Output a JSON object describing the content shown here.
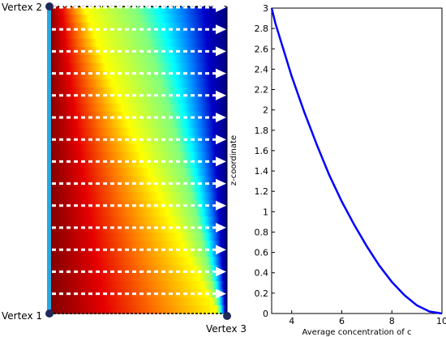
{
  "domain_view": {
    "vertices": {
      "vertex1": "Vertex 1",
      "vertex2": "Vertex 2",
      "vertex3": "Vertex 3"
    },
    "colormap": [
      "#7f0000",
      "#e60000",
      "#ff7f00",
      "#ffff00",
      "#80ff80",
      "#00ffff",
      "#0080ff",
      "#0000c8",
      "#000080"
    ],
    "arrow_rows": 14
  },
  "chart_data": {
    "type": "line",
    "xlabel": "Average concentration of c",
    "ylabel": "z-coordinate",
    "xlim": [
      3.2,
      10
    ],
    "ylim": [
      0,
      3
    ],
    "xticks": [
      4,
      6,
      8,
      10
    ],
    "yticks": [
      0,
      0.2,
      0.4,
      0.6,
      0.8,
      1,
      1.2,
      1.4,
      1.6,
      1.8,
      2,
      2.2,
      2.4,
      2.6,
      2.8,
      3
    ],
    "series": [
      {
        "color": "#0000ff",
        "x": [
          3.2,
          3.35,
          3.6,
          4.0,
          4.5,
          5.0,
          5.5,
          6.0,
          6.5,
          7.0,
          7.5,
          8.0,
          8.5,
          9.0,
          9.5,
          10.0
        ],
        "y": [
          3.0,
          2.85,
          2.65,
          2.33,
          1.98,
          1.66,
          1.36,
          1.1,
          0.87,
          0.66,
          0.47,
          0.31,
          0.18,
          0.08,
          0.02,
          0.0
        ]
      }
    ]
  }
}
